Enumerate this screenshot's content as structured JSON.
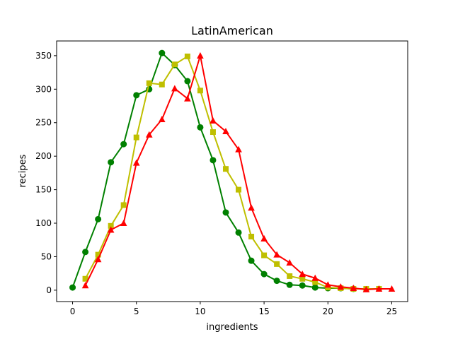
{
  "chart_data": {
    "type": "line",
    "title": "LatinAmerican",
    "xlabel": "ingredients",
    "ylabel": "recipes",
    "xlim": [
      -1.25,
      26.25
    ],
    "ylim": [
      -17,
      372
    ],
    "xticks": [
      0,
      5,
      10,
      15,
      20,
      25
    ],
    "yticks": [
      0,
      50,
      100,
      150,
      200,
      250,
      300,
      350
    ],
    "grid": false,
    "series": [
      {
        "name": "green",
        "color": "#008000",
        "marker": "circle",
        "x": [
          0,
          1,
          2,
          3,
          4,
          5,
          6,
          7,
          8,
          9,
          10,
          11,
          12,
          13,
          14,
          15,
          16,
          17,
          18,
          19,
          20,
          21,
          22
        ],
        "values": [
          4,
          57,
          106,
          191,
          218,
          291,
          300,
          354,
          336,
          312,
          243,
          194,
          116,
          86,
          44,
          24,
          14,
          8,
          7,
          4,
          3,
          3,
          2
        ]
      },
      {
        "name": "yellow",
        "color": "#bfbf00",
        "marker": "square",
        "x": [
          1,
          2,
          3,
          4,
          5,
          6,
          7,
          8,
          9,
          10,
          11,
          12,
          13,
          14,
          15,
          16,
          17,
          18,
          19,
          20,
          21,
          22,
          23,
          24
        ],
        "values": [
          17,
          53,
          96,
          127,
          228,
          309,
          307,
          337,
          349,
          298,
          236,
          181,
          150,
          80,
          52,
          39,
          21,
          17,
          12,
          4,
          3,
          2,
          2,
          2
        ]
      },
      {
        "name": "red",
        "color": "#ff0000",
        "marker": "triangle",
        "x": [
          1,
          2,
          3,
          4,
          5,
          6,
          7,
          8,
          9,
          10,
          11,
          12,
          13,
          14,
          15,
          16,
          17,
          18,
          19,
          20,
          21,
          22,
          23,
          24,
          25
        ],
        "values": [
          7,
          46,
          90,
          100,
          190,
          232,
          255,
          301,
          286,
          350,
          253,
          237,
          210,
          123,
          77,
          53,
          41,
          24,
          18,
          8,
          5,
          3,
          1,
          2,
          2
        ]
      }
    ]
  }
}
